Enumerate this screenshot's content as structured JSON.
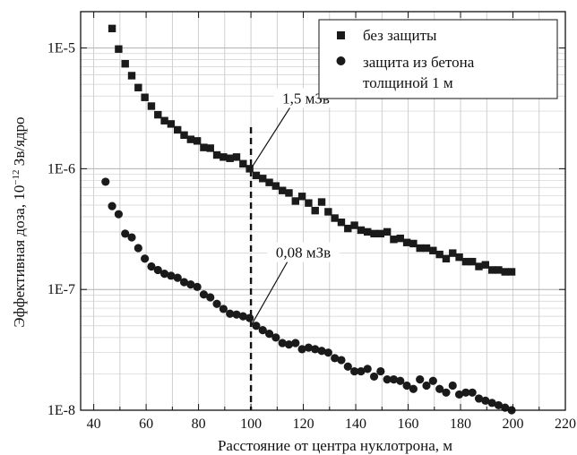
{
  "chart_data": {
    "type": "scatter",
    "xlabel": "Расстояние от центра нуклотрона, м",
    "ylabel_main": "Эффективная доза, 10",
    "ylabel_sup": "−12",
    "ylabel_tail": " Зв/ядро",
    "xlim": [
      35,
      220
    ],
    "ylim": [
      1e-08,
      2e-05
    ],
    "yscale": "log",
    "grid": true,
    "x_ticks": [
      40,
      60,
      80,
      100,
      120,
      140,
      160,
      180,
      200,
      220
    ],
    "y_ticks": [
      {
        "value": 1e-05,
        "label": "1E-5"
      },
      {
        "value": 1e-06,
        "label": "1E-6"
      },
      {
        "value": 1e-07,
        "label": "1E-7"
      },
      {
        "value": 1e-08,
        "label": "1E-8"
      }
    ],
    "legend_position": "top-right",
    "vline_x": 100,
    "annotations": [
      {
        "text": "1,5 мЗв",
        "x": 100,
        "y": 1e-06,
        "text_x": 121,
        "text_y": 3.6e-06
      },
      {
        "text": "0,08 мЗв",
        "x": 100,
        "y": 5e-08,
        "text_x": 120,
        "text_y": 1.9e-07
      }
    ],
    "series": [
      {
        "name": "без защиты",
        "marker": "square",
        "x": [
          47,
          49.5,
          52,
          54.5,
          57,
          59.5,
          62,
          64.5,
          67,
          69.5,
          72,
          74.5,
          77,
          79.5,
          82,
          84.5,
          87,
          89.5,
          92,
          94.5,
          97,
          99.5,
          102,
          104.5,
          107,
          109.5,
          112,
          114.5,
          117,
          119.5,
          122,
          124.5,
          127,
          129.5,
          132,
          134.5,
          137,
          139.5,
          142,
          144.5,
          147,
          149.5,
          152,
          154.5,
          157,
          159.5,
          162,
          164.5,
          167,
          169.5,
          172,
          174.5,
          177,
          179.5,
          182,
          184.5,
          187,
          189.5,
          192,
          194.5,
          197,
          199.5
        ],
        "values": [
          1.45e-05,
          9.8e-06,
          7.4e-06,
          5.9e-06,
          4.7e-06,
          3.9e-06,
          3.3e-06,
          2.8e-06,
          2.5e-06,
          2.35e-06,
          2.1e-06,
          1.9e-06,
          1.75e-06,
          1.7e-06,
          1.5e-06,
          1.48e-06,
          1.3e-06,
          1.25e-06,
          1.22e-06,
          1.25e-06,
          1.1e-06,
          1e-06,
          8.8e-07,
          8.3e-07,
          7.7e-07,
          7.2e-07,
          6.6e-07,
          6.3e-07,
          5.4e-07,
          5.9e-07,
          5.2e-07,
          4.5e-07,
          5.3e-07,
          4.4e-07,
          3.9e-07,
          3.6e-07,
          3.2e-07,
          3.4e-07,
          3.1e-07,
          3e-07,
          2.9e-07,
          2.9e-07,
          3e-07,
          2.6e-07,
          2.65e-07,
          2.45e-07,
          2.4e-07,
          2.2e-07,
          2.2e-07,
          2.1e-07,
          1.95e-07,
          1.8e-07,
          2e-07,
          1.85e-07,
          1.7e-07,
          1.7e-07,
          1.55e-07,
          1.6e-07,
          1.45e-07,
          1.45e-07,
          1.4e-07,
          1.4e-07
        ]
      },
      {
        "name": "защита из бетона\nтолщиной 1 м",
        "marker": "circle",
        "x": [
          44.5,
          47,
          49.5,
          52,
          54.5,
          57,
          59.5,
          62,
          64.5,
          67,
          69.5,
          72,
          74.5,
          77,
          79.5,
          82,
          84.5,
          87,
          89.5,
          92,
          94.5,
          97,
          99.5,
          102,
          104.5,
          107,
          109.5,
          112,
          114.5,
          117,
          119.5,
          122,
          124.5,
          127,
          129.5,
          132,
          134.5,
          137,
          139.5,
          142,
          144.5,
          147,
          149.5,
          152,
          154.5,
          157,
          159.5,
          162,
          164.5,
          167,
          169.5,
          172,
          174.5,
          177,
          179.5,
          182,
          184.5,
          187,
          189.5,
          192,
          194.5,
          197,
          199.5
        ],
        "values": [
          7.8e-07,
          4.9e-07,
          4.2e-07,
          2.9e-07,
          2.7e-07,
          2.2e-07,
          1.8e-07,
          1.55e-07,
          1.45e-07,
          1.35e-07,
          1.3e-07,
          1.25e-07,
          1.15e-07,
          1.1e-07,
          1.05e-07,
          9.1e-08,
          8.6e-08,
          7.6e-08,
          6.9e-08,
          6.3e-08,
          6.2e-08,
          6e-08,
          5.8e-08,
          5e-08,
          4.6e-08,
          4.3e-08,
          4e-08,
          3.6e-08,
          3.5e-08,
          3.6e-08,
          3.2e-08,
          3.3e-08,
          3.2e-08,
          3.1e-08,
          3e-08,
          2.7e-08,
          2.6e-08,
          2.3e-08,
          2.1e-08,
          2.1e-08,
          2.2e-08,
          1.9e-08,
          2.1e-08,
          1.8e-08,
          1.8e-08,
          1.75e-08,
          1.6e-08,
          1.5e-08,
          1.8e-08,
          1.6e-08,
          1.75e-08,
          1.5e-08,
          1.4e-08,
          1.6e-08,
          1.35e-08,
          1.4e-08,
          1.4e-08,
          1.25e-08,
          1.2e-08,
          1.15e-08,
          1.1e-08,
          1.05e-08,
          1e-08
        ]
      }
    ]
  }
}
